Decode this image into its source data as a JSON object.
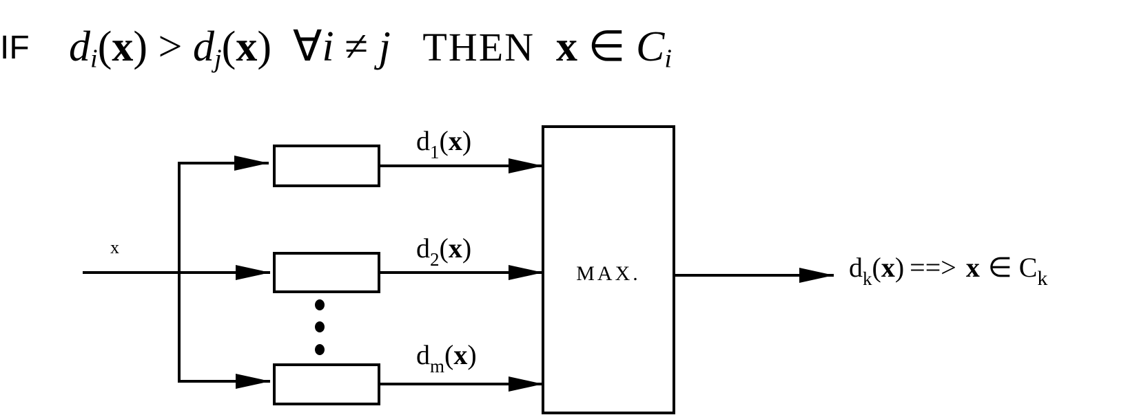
{
  "rule": {
    "if_label": "IF",
    "lhs_fn": "d",
    "lhs_sub": "i",
    "vec": "x",
    "gt": ">",
    "rhs_fn": "d",
    "rhs_sub": "j",
    "forall": "∀",
    "i_var": "i",
    "neq": "≠",
    "j_var": "j",
    "then_label": "THEN",
    "in": "∈",
    "class_var": "C",
    "class_sub": "i"
  },
  "diagram": {
    "input_label": "x",
    "channels": [
      {
        "d": "d",
        "sub": "1",
        "open": "(",
        "x": "x",
        "close": ")"
      },
      {
        "d": "d",
        "sub": "2",
        "open": "(",
        "x": "x",
        "close": ")"
      },
      {
        "d": "d",
        "sub": "m",
        "open": "(",
        "x": "x",
        "close": ")"
      }
    ],
    "max_label": "MAX.",
    "output": {
      "d": "d",
      "sub": "k",
      "open": "(",
      "x": "x",
      "close": ")",
      "implies": "==>",
      "vec": "x",
      "in": "∈",
      "class": "C",
      "class_sub": "k"
    }
  }
}
